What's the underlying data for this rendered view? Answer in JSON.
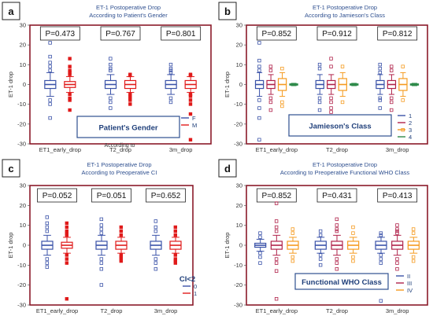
{
  "chart_data": [
    {
      "panel": "a",
      "type": "box",
      "title": "ET-1 Postoperative Drop",
      "subtitle": "According to Patient's Gender",
      "ylabel": "ET-1  drop",
      "ylim": [
        -30,
        30
      ],
      "yticks": [
        30,
        20,
        10,
        0,
        -10,
        -20,
        -30
      ],
      "categories": [
        "ET1_early_drop",
        "T2_drop",
        "3m_drop"
      ],
      "pvalues": [
        "P=0.473",
        "P=0.767",
        "P=0.801"
      ],
      "legend": {
        "title": "Patient's Gender",
        "entries": [
          "F",
          "M"
        ],
        "placement": "bottom-right"
      },
      "note": "According to",
      "series": [
        {
          "name": "F",
          "color": "#3a52a8",
          "boxes": [
            {
              "q1": -2,
              "median": 0,
              "q3": 2,
              "lo": -6,
              "hi": 6,
              "out": [
                21,
                14,
                11,
                9,
                7,
                -8,
                -10,
                -17
              ]
            },
            {
              "q1": -2,
              "median": 0,
              "q3": 2,
              "lo": -5,
              "hi": 5,
              "out": [
                13,
                10,
                8,
                7,
                -7,
                -9,
                -12
              ]
            },
            {
              "q1": -2,
              "median": 0,
              "q3": 2,
              "lo": -5,
              "hi": 5,
              "out": [
                10,
                8,
                7,
                6,
                -7,
                -9,
                -17
              ]
            }
          ]
        },
        {
          "name": "M",
          "color": "#e01a1a",
          "boxes": [
            {
              "q1": -1.5,
              "median": 0,
              "q3": 1.5,
              "lo": -4,
              "hi": 4,
              "out": [
                13,
                9,
                7,
                6,
                5,
                -5,
                -7,
                -8,
                -13
              ]
            },
            {
              "q1": -2,
              "median": 0,
              "q3": 2,
              "lo": -4,
              "hi": 4,
              "out": [
                5,
                4.5,
                -5,
                -6,
                -7,
                -8,
                -10
              ]
            },
            {
              "q1": -2,
              "median": 0,
              "q3": 2,
              "lo": -4,
              "hi": 4,
              "out": [
                5,
                4.5,
                -5,
                -6,
                -8,
                -10,
                -15,
                -28
              ]
            }
          ]
        }
      ]
    },
    {
      "panel": "b",
      "type": "box",
      "title": "ET-1 Postoperative Drop",
      "subtitle": "According to Jamieson's Class",
      "ylabel": "ET-1  drop",
      "ylim": [
        -30,
        30
      ],
      "yticks": [
        30,
        20,
        10,
        0,
        -10,
        -20,
        -30
      ],
      "categories": [
        "ET1_early_drop",
        "T2_drop",
        "3m_drop"
      ],
      "pvalues": [
        "P=0.852",
        "P=0.912",
        "P=0.812"
      ],
      "legend": {
        "title": "Jamieson's Class",
        "entries": [
          "1",
          "2",
          "3",
          "4"
        ],
        "placement": "bottom-right"
      },
      "series": [
        {
          "name": "1",
          "color": "#3a52a8",
          "boxes": [
            {
              "q1": -2,
              "median": 0,
              "q3": 2,
              "lo": -6,
              "hi": 6,
              "out": [
                21,
                12,
                9,
                7,
                -8,
                -12,
                -17,
                -28
              ]
            },
            {
              "q1": -2,
              "median": 0,
              "q3": 2,
              "lo": -5,
              "hi": 5,
              "out": [
                10,
                8,
                -7,
                -9,
                -13
              ]
            },
            {
              "q1": -2,
              "median": 0,
              "q3": 2,
              "lo": -5,
              "hi": 5,
              "out": [
                10,
                8,
                6,
                -7,
                -8,
                -12,
                -17
              ]
            }
          ]
        },
        {
          "name": "2",
          "color": "#b0224a",
          "boxes": [
            {
              "q1": -2,
              "median": 0,
              "q3": 2,
              "lo": -5,
              "hi": 5,
              "out": [
                9,
                7,
                -7,
                -9,
                -13
              ]
            },
            {
              "q1": -2,
              "median": 0,
              "q3": 2,
              "lo": -5,
              "hi": 5,
              "out": [
                13,
                9,
                -7,
                -9,
                -12,
                -14
              ]
            },
            {
              "q1": -2,
              "median": 0,
              "q3": 2,
              "lo": -5,
              "hi": 5,
              "out": [
                9,
                7,
                -7,
                -9,
                -13
              ]
            }
          ]
        },
        {
          "name": "3",
          "color": "#f59a1e",
          "boxes": [
            {
              "q1": -3,
              "median": 0,
              "q3": 3,
              "lo": -6,
              "hi": 6,
              "out": [
                8,
                -9,
                -11
              ]
            },
            {
              "q1": -3,
              "median": 0,
              "q3": 3,
              "lo": -6,
              "hi": 6,
              "out": [
                9,
                -9
              ]
            },
            {
              "q1": -3,
              "median": 0,
              "q3": 3,
              "lo": -6,
              "hi": 6,
              "out": [
                9,
                -8,
                -23
              ]
            }
          ]
        },
        {
          "name": "4",
          "color": "#2e8a4a",
          "boxes": [
            {
              "q1": -0.3,
              "median": 0,
              "q3": 0.3,
              "lo": -0.6,
              "hi": 0.6,
              "out": []
            },
            {
              "q1": -0.3,
              "median": 0,
              "q3": 0.3,
              "lo": -0.6,
              "hi": 0.6,
              "out": []
            },
            {
              "q1": -0.3,
              "median": 0,
              "q3": 0.3,
              "lo": -0.6,
              "hi": 0.6,
              "out": []
            }
          ]
        }
      ]
    },
    {
      "panel": "c",
      "type": "box",
      "title": "ET-1 Postoperative Drop",
      "subtitle": "According to Preoperative CI",
      "ylabel": "ET-1  drop",
      "ylim": [
        -30,
        30
      ],
      "yticks": [
        30,
        20,
        10,
        0,
        -10,
        -20,
        -30
      ],
      "categories": [
        "ET1_early_drop",
        "T2_drop",
        "3m_drop"
      ],
      "pvalues": [
        "P=0.052",
        "P=0.051",
        "P=0.652"
      ],
      "legend": {
        "title": "CI<2",
        "entries": [
          "0",
          "1"
        ],
        "placement": "bottom-right"
      },
      "series": [
        {
          "name": "0",
          "color": "#3a52a8",
          "boxes": [
            {
              "q1": -2,
              "median": 0,
              "q3": 2,
              "lo": -5,
              "hi": 5,
              "out": [
                14,
                11,
                9,
                7,
                -7,
                -9,
                -11
              ]
            },
            {
              "q1": -2,
              "median": 0,
              "q3": 2,
              "lo": -5,
              "hi": 5,
              "out": [
                13,
                10,
                8,
                6,
                -7,
                -9,
                -12,
                -20
              ]
            },
            {
              "q1": -2,
              "median": 0,
              "q3": 2,
              "lo": -5,
              "hi": 5,
              "out": [
                12,
                9,
                7,
                -7,
                -9,
                -12
              ]
            }
          ]
        },
        {
          "name": "1",
          "color": "#e01a1a",
          "boxes": [
            {
              "q1": -1.5,
              "median": 0,
              "q3": 1.5,
              "lo": -4,
              "hi": 4,
              "out": [
                11,
                9,
                7,
                6,
                5,
                -5,
                -7,
                -9,
                -27
              ]
            },
            {
              "q1": -2,
              "median": 0,
              "q3": 2,
              "lo": -4,
              "hi": 4,
              "out": [
                9,
                7,
                5,
                -5,
                -6,
                -7,
                -8
              ]
            },
            {
              "q1": -2,
              "median": 0,
              "q3": 2,
              "lo": -4,
              "hi": 4,
              "out": [
                9,
                7,
                5,
                -5,
                -7,
                -8,
                -9
              ]
            }
          ]
        }
      ]
    },
    {
      "panel": "d",
      "type": "box",
      "title": "ET-1 Postoperative Drop",
      "subtitle": "According to Preoperative Functional WHO Class",
      "ylabel": "ET-1  drop",
      "ylim": [
        -30,
        30
      ],
      "yticks": [
        30,
        20,
        10,
        0,
        -10,
        -20,
        -30
      ],
      "categories": [
        "ET1_early_drop",
        "T2_drop",
        "3m_drop"
      ],
      "pvalues": [
        "P=0.852",
        "P=0.431",
        "P=0.413"
      ],
      "legend": {
        "title": "Functional WHO Class",
        "entries": [
          "II",
          "III",
          "IV"
        ],
        "placement": "bottom-right"
      },
      "series": [
        {
          "name": "II",
          "color": "#3a52a8",
          "boxes": [
            {
              "q1": -1,
              "median": 0,
              "q3": 1,
              "lo": -3,
              "hi": 3,
              "out": [
                6,
                4,
                -4,
                -6,
                -9
              ]
            },
            {
              "q1": -2,
              "median": 0,
              "q3": 2,
              "lo": -4,
              "hi": 4,
              "out": [
                7,
                5,
                -5,
                -7,
                -10
              ]
            },
            {
              "q1": -2,
              "median": 0,
              "q3": 2,
              "lo": -4,
              "hi": 4,
              "out": [
                6,
                5,
                -5,
                -7,
                -9,
                -28
              ]
            }
          ]
        },
        {
          "name": "III",
          "color": "#b0224a",
          "boxes": [
            {
              "q1": -2,
              "median": 0,
              "q3": 2,
              "lo": -5,
              "hi": 5,
              "out": [
                21,
                12,
                9,
                7,
                -7,
                -9,
                -13,
                -27
              ]
            },
            {
              "q1": -2,
              "median": 0,
              "q3": 2,
              "lo": -5,
              "hi": 5,
              "out": [
                13,
                10,
                8,
                7,
                -7,
                -9,
                -12,
                -15
              ]
            },
            {
              "q1": -2,
              "median": 0,
              "q3": 2,
              "lo": -5,
              "hi": 5,
              "out": [
                10,
                8,
                7,
                6,
                -7,
                -9,
                -12
              ]
            }
          ]
        },
        {
          "name": "IV",
          "color": "#f59a1e",
          "boxes": [
            {
              "q1": -2,
              "median": 0,
              "q3": 2,
              "lo": -4,
              "hi": 4,
              "out": [
                8,
                6,
                -6,
                -8
              ]
            },
            {
              "q1": -2,
              "median": 0,
              "q3": 2,
              "lo": -4,
              "hi": 4,
              "out": [
                9,
                6,
                -6,
                -8
              ]
            },
            {
              "q1": -2,
              "median": 0,
              "q3": 2,
              "lo": -4,
              "hi": 4,
              "out": [
                8,
                6,
                -6,
                -8
              ]
            }
          ]
        }
      ]
    }
  ],
  "colors": {
    "frame": "#8b1a2a",
    "title": "#2e4f8f",
    "legend_text": "#1f3f7a"
  }
}
